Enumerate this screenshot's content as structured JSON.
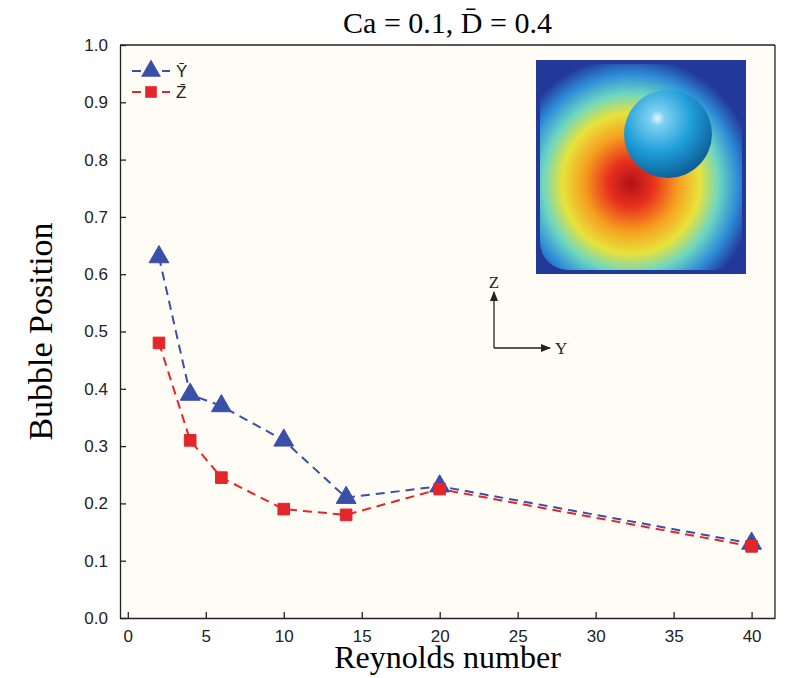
{
  "chart_data": {
    "type": "line",
    "title": "Ca = 0.1, D̄ = 0.4",
    "x_label": "Reynolds number",
    "y_label": "Bubble Position",
    "x": [
      2,
      4,
      6,
      10,
      14,
      20,
      40
    ],
    "series": [
      {
        "name": "Ȳ",
        "color": "#3a4fa8",
        "marker": "triangle",
        "line_style": "dashed",
        "values": [
          0.63,
          0.39,
          0.37,
          0.31,
          0.21,
          0.23,
          0.13
        ]
      },
      {
        "name": "Z̄",
        "color": "#e3262b",
        "marker": "square",
        "line_style": "dashed",
        "values": [
          0.48,
          0.31,
          0.245,
          0.19,
          0.18,
          0.225,
          0.125
        ]
      }
    ],
    "xlim": [
      -0.5,
      41.5
    ],
    "xticks": [
      0,
      5,
      10,
      15,
      20,
      25,
      30,
      35,
      40
    ],
    "ylim": [
      0,
      1
    ],
    "yticks": [
      {
        "value": 0,
        "label": "0.0"
      },
      0.1,
      0.2,
      0.3,
      0.4,
      0.5,
      0.6,
      0.7,
      0.8,
      0.9,
      {
        "value": 1,
        "label": "1.0"
      }
    ],
    "legend": "upper left",
    "annotations": [
      "Z",
      "Y"
    ]
  }
}
